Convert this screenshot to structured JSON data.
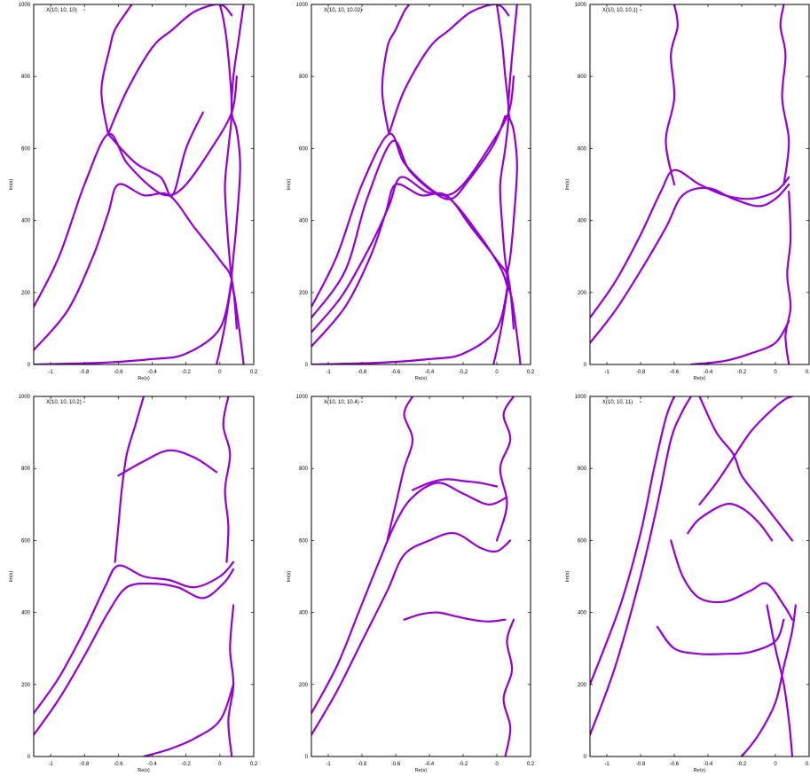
{
  "chart_data": [
    {
      "type": "scatter",
      "legend": "X(10, 10, 10)",
      "xlabel": "Re(s)",
      "ylabel": "Im(s)",
      "xlim": [
        -1.1,
        0.2
      ],
      "ylim": [
        0,
        1000
      ],
      "xticks": [
        "-1",
        "-0.8",
        "-0.6",
        "-0.4",
        "-0.2",
        "0",
        "0.2"
      ],
      "yticks": [
        "0",
        "200",
        "400",
        "600",
        "800",
        "1000"
      ],
      "legend_position": "top-left",
      "color": "#9400d3",
      "curves": [
        {
          "x": [
            -0.02,
            0.0,
            0.03,
            0.06,
            0.07,
            0.06,
            0.04,
            0.03,
            0.05,
            0.07,
            0.06,
            0.04,
            0.02,
            0.0
          ],
          "y": [
            0,
            40,
            110,
            200,
            235,
            280,
            400,
            500,
            600,
            700,
            800,
            900,
            960,
            1000
          ]
        },
        {
          "x": [
            0.14,
            0.12,
            0.09,
            0.07,
            0.08,
            0.1,
            0.12,
            0.1,
            0.07,
            0.08,
            0.11,
            0.14
          ],
          "y": [
            0,
            80,
            180,
            235,
            300,
            400,
            550,
            650,
            700,
            800,
            900,
            1000
          ]
        },
        {
          "x": [
            -1.1,
            -0.9,
            -0.75,
            -0.66,
            -0.6,
            -0.45,
            -0.3,
            -0.15,
            0.0,
            0.07,
            0.1
          ],
          "y": [
            40,
            150,
            300,
            420,
            500,
            470,
            470,
            380,
            290,
            235,
            100
          ]
        },
        {
          "x": [
            -1.1,
            -0.95,
            -0.8,
            -0.66,
            -0.55,
            -0.4,
            -0.3,
            -0.2,
            -0.05,
            0.07,
            0.1
          ],
          "y": [
            160,
            300,
            500,
            640,
            560,
            490,
            470,
            500,
            600,
            700,
            800
          ]
        },
        {
          "x": [
            -1.1,
            -0.7,
            -0.4,
            -0.2,
            0.0,
            0.07
          ],
          "y": [
            0,
            5,
            15,
            30,
            100,
            235
          ]
        },
        {
          "x": [
            -0.66,
            -0.55,
            -0.4,
            -0.28,
            -0.15,
            0.0,
            0.07
          ],
          "y": [
            640,
            760,
            880,
            930,
            980,
            1000,
            970
          ]
        },
        {
          "x": [
            -0.66,
            -0.7,
            -0.65,
            -0.62,
            -0.55,
            -0.52
          ],
          "y": [
            640,
            760,
            880,
            930,
            980,
            1000
          ]
        },
        {
          "x": [
            -0.66,
            -0.5,
            -0.35,
            -0.28,
            -0.2,
            -0.1
          ],
          "y": [
            640,
            560,
            520,
            470,
            600,
            700
          ]
        }
      ]
    },
    {
      "type": "scatter",
      "legend": "X(10, 10, 10.02)",
      "xlabel": "Re(s)",
      "ylabel": "Im(s)",
      "xlim": [
        -1.1,
        0.2
      ],
      "ylim": [
        0,
        1000
      ],
      "xticks": [
        "-1",
        "-0.8",
        "-0.6",
        "-0.4",
        "-0.2",
        "0",
        "0.2"
      ],
      "yticks": [
        "0",
        "200",
        "400",
        "600",
        "800",
        "1000"
      ],
      "legend_position": "top-left",
      "color": "#9400d3",
      "curves": [
        {
          "x": [
            -0.02,
            0.0,
            0.03,
            0.06,
            0.07,
            0.05,
            0.03,
            0.02,
            0.05,
            0.07,
            0.05,
            0.03,
            0.0
          ],
          "y": [
            0,
            40,
            110,
            200,
            235,
            290,
            400,
            500,
            600,
            700,
            800,
            900,
            1000
          ]
        },
        {
          "x": [
            0.14,
            0.12,
            0.09,
            0.06,
            0.08,
            0.1,
            0.12,
            0.1,
            0.07,
            0.08,
            0.12
          ],
          "y": [
            0,
            80,
            180,
            235,
            300,
            400,
            550,
            650,
            700,
            800,
            1000
          ]
        },
        {
          "x": [
            -1.1,
            -0.9,
            -0.75,
            -0.66,
            -0.6,
            -0.45,
            -0.3,
            -0.15,
            0.0,
            0.07,
            0.1
          ],
          "y": [
            50,
            160,
            300,
            420,
            500,
            470,
            470,
            380,
            290,
            235,
            100
          ]
        },
        {
          "x": [
            -1.1,
            -0.92,
            -0.75,
            -0.64,
            -0.57,
            -0.42,
            -0.28,
            -0.12,
            0.02,
            0.06
          ],
          "y": [
            90,
            190,
            330,
            440,
            520,
            480,
            460,
            370,
            270,
            220
          ]
        },
        {
          "x": [
            -1.1,
            -0.95,
            -0.8,
            -0.64,
            -0.55,
            -0.4,
            -0.3,
            -0.2,
            -0.05,
            0.07,
            0.1
          ],
          "y": [
            160,
            300,
            500,
            640,
            560,
            490,
            470,
            500,
            600,
            700,
            800
          ]
        },
        {
          "x": [
            -1.1,
            -0.9,
            -0.77,
            -0.62,
            -0.52,
            -0.38,
            -0.27,
            -0.17,
            -0.02,
            0.05
          ],
          "y": [
            130,
            260,
            460,
            620,
            540,
            480,
            460,
            510,
            610,
            690
          ]
        },
        {
          "x": [
            -1.1,
            -0.7,
            -0.4,
            -0.2,
            0.0,
            0.07
          ],
          "y": [
            0,
            5,
            15,
            30,
            100,
            235
          ]
        },
        {
          "x": [
            -0.64,
            -0.55,
            -0.4,
            -0.28,
            -0.15,
            0.0,
            0.07
          ],
          "y": [
            640,
            760,
            880,
            930,
            980,
            1000,
            970
          ]
        },
        {
          "x": [
            -0.64,
            -0.68,
            -0.65,
            -0.6,
            -0.55,
            -0.52
          ],
          "y": [
            640,
            760,
            880,
            930,
            980,
            1000
          ]
        }
      ]
    },
    {
      "type": "scatter",
      "legend": "X(10, 10, 10.1)",
      "xlabel": "Re(s)",
      "ylabel": "Im(s)",
      "xlim": [
        -1.1,
        0.2
      ],
      "ylim": [
        0,
        1000
      ],
      "xticks": [
        "-1",
        "-0.8",
        "-0.6",
        "-0.4",
        "-0.2",
        "0",
        "0.2"
      ],
      "yticks": [
        "0",
        "200",
        "400",
        "600",
        "800",
        "1000"
      ],
      "legend_position": "top-left",
      "color": "#9400d3",
      "curves": [
        {
          "x": [
            -1.1,
            -0.95,
            -0.8,
            -0.65,
            -0.55,
            -0.4,
            -0.25,
            -0.1,
            0.0,
            0.08
          ],
          "y": [
            60,
            150,
            260,
            380,
            470,
            490,
            460,
            440,
            460,
            500
          ]
        },
        {
          "x": [
            -1.1,
            -0.95,
            -0.8,
            -0.68,
            -0.6,
            -0.45,
            -0.3,
            -0.15,
            0.0,
            0.08
          ],
          "y": [
            130,
            230,
            360,
            480,
            540,
            500,
            470,
            460,
            480,
            520
          ]
        },
        {
          "x": [
            -0.6,
            -0.65,
            -0.6,
            -0.62,
            -0.58,
            -0.6
          ],
          "y": [
            500,
            620,
            740,
            860,
            940,
            1000
          ]
        },
        {
          "x": [
            0.05,
            0.08,
            0.04,
            0.06,
            0.03,
            0.05
          ],
          "y": [
            500,
            620,
            740,
            860,
            940,
            1000
          ]
        },
        {
          "x": [
            0.08,
            0.06,
            0.09,
            0.07,
            0.09,
            0.08
          ],
          "y": [
            0,
            80,
            160,
            250,
            350,
            480
          ]
        },
        {
          "x": [
            -0.5,
            -0.3,
            -0.15,
            0.0,
            0.08
          ],
          "y": [
            0,
            10,
            30,
            60,
            120
          ]
        }
      ]
    },
    {
      "type": "scatter",
      "legend": "X(10, 10, 10.2)",
      "xlabel": "Re(s)",
      "ylabel": "Im(s)",
      "xlim": [
        -1.1,
        0.2
      ],
      "ylim": [
        0,
        1000
      ],
      "xticks": [
        "-1",
        "-0.8",
        "-0.6",
        "-0.4",
        "-0.2",
        "0",
        "0.2"
      ],
      "yticks": [
        "0",
        "200",
        "400",
        "600",
        "800",
        "1000"
      ],
      "legend_position": "top-left",
      "color": "#9400d3",
      "curves": [
        {
          "x": [
            -1.1,
            -0.95,
            -0.8,
            -0.66,
            -0.55,
            -0.4,
            -0.25,
            -0.1,
            0.02,
            0.08
          ],
          "y": [
            60,
            160,
            280,
            400,
            470,
            480,
            470,
            440,
            480,
            520
          ]
        },
        {
          "x": [
            -1.1,
            -0.95,
            -0.8,
            -0.68,
            -0.6,
            -0.45,
            -0.3,
            -0.15,
            0.0,
            0.08
          ],
          "y": [
            120,
            220,
            350,
            470,
            530,
            500,
            490,
            470,
            500,
            540
          ]
        },
        {
          "x": [
            -0.62,
            -0.6,
            -0.58,
            -0.55,
            -0.5,
            -0.45
          ],
          "y": [
            540,
            640,
            740,
            840,
            920,
            1000
          ]
        },
        {
          "x": [
            0.04,
            0.05,
            0.03,
            0.06,
            0.02,
            0.05
          ],
          "y": [
            540,
            640,
            740,
            840,
            920,
            1000
          ]
        },
        {
          "x": [
            -0.6,
            -0.45,
            -0.3,
            -0.15,
            -0.02
          ],
          "y": [
            780,
            820,
            850,
            830,
            790
          ]
        },
        {
          "x": [
            -0.45,
            -0.3,
            -0.15,
            0.0,
            0.08
          ],
          "y": [
            0,
            20,
            50,
            100,
            200
          ]
        },
        {
          "x": [
            0.07,
            0.05,
            0.08,
            0.06,
            0.08
          ],
          "y": [
            0,
            100,
            200,
            300,
            420
          ]
        }
      ]
    },
    {
      "type": "scatter",
      "legend": "X(10, 10, 10.4)",
      "xlabel": "Re(s)",
      "ylabel": "Im(s)",
      "xlim": [
        -1.1,
        0.2
      ],
      "ylim": [
        0,
        1000
      ],
      "xticks": [
        "-1",
        "-0.8",
        "-0.6",
        "-0.4",
        "-0.2",
        "0",
        "0.2"
      ],
      "yticks": [
        "0",
        "200",
        "400",
        "600",
        "800",
        "1000"
      ],
      "legend_position": "top-left",
      "color": "#9400d3",
      "curves": [
        {
          "x": [
            -1.1,
            -0.95,
            -0.8,
            -0.65,
            -0.55,
            -0.4,
            -0.25,
            -0.1,
            0.0,
            0.08
          ],
          "y": [
            60,
            180,
            320,
            460,
            560,
            600,
            620,
            580,
            570,
            600
          ]
        },
        {
          "x": [
            -1.1,
            -0.95,
            -0.82,
            -0.7,
            -0.6,
            -0.5,
            -0.35,
            -0.2,
            -0.05,
            0.06
          ],
          "y": [
            120,
            250,
            400,
            540,
            650,
            720,
            760,
            730,
            700,
            720
          ]
        },
        {
          "x": [
            -0.55,
            -0.45,
            -0.35,
            -0.25,
            -0.15,
            -0.05,
            0.05
          ],
          "y": [
            380,
            395,
            400,
            390,
            380,
            375,
            380
          ]
        },
        {
          "x": [
            -0.5,
            -0.4,
            -0.3,
            -0.2,
            -0.1,
            0.0
          ],
          "y": [
            740,
            760,
            770,
            765,
            760,
            750
          ]
        },
        {
          "x": [
            -0.65,
            -0.6,
            -0.55,
            -0.5,
            -0.55,
            -0.5
          ],
          "y": [
            600,
            700,
            800,
            880,
            950,
            1000
          ]
        },
        {
          "x": [
            0.0,
            0.06,
            0.02,
            0.08,
            0.04,
            0.1
          ],
          "y": [
            600,
            700,
            800,
            880,
            950,
            1000
          ]
        },
        {
          "x": [
            0.05,
            0.08,
            0.04,
            0.09,
            0.06,
            0.1
          ],
          "y": [
            0,
            80,
            160,
            240,
            320,
            380
          ]
        }
      ]
    },
    {
      "type": "scatter",
      "legend": "X(10, 10, 11)",
      "xlabel": "Re(s)",
      "ylabel": "Im(s)",
      "xlim": [
        -1.1,
        0.2
      ],
      "ylim": [
        0,
        1000
      ],
      "xticks": [
        "-1",
        "-0.8",
        "-0.6",
        "-0.4",
        "-0.2",
        "0",
        "0.2"
      ],
      "yticks": [
        "0",
        "200",
        "400",
        "600",
        "800",
        "1000"
      ],
      "legend_position": "top-left",
      "color": "#9400d3",
      "curves": [
        {
          "x": [
            -1.1,
            -0.95,
            -0.8,
            -0.7,
            -0.62,
            -0.55,
            -0.5
          ],
          "y": [
            60,
            250,
            500,
            700,
            880,
            960,
            1000
          ]
        },
        {
          "x": [
            -1.1,
            -0.92,
            -0.8,
            -0.72,
            -0.65,
            -0.6
          ],
          "y": [
            200,
            420,
            620,
            800,
            940,
            1000
          ]
        },
        {
          "x": [
            -0.62,
            -0.55,
            -0.45,
            -0.3,
            -0.15,
            -0.05,
            0.05,
            0.1
          ],
          "y": [
            600,
            500,
            440,
            430,
            460,
            480,
            420,
            380
          ]
        },
        {
          "x": [
            -0.7,
            -0.6,
            -0.45,
            -0.3,
            -0.15,
            0.0,
            0.05
          ],
          "y": [
            360,
            300,
            285,
            285,
            290,
            320,
            380
          ]
        },
        {
          "x": [
            -0.52,
            -0.45,
            -0.3,
            -0.2,
            -0.1,
            -0.02
          ],
          "y": [
            620,
            660,
            700,
            690,
            650,
            600
          ]
        },
        {
          "x": [
            -0.45,
            -0.35,
            -0.25,
            -0.2,
            -0.1,
            0.0,
            0.1
          ],
          "y": [
            1000,
            900,
            840,
            780,
            720,
            660,
            600
          ]
        },
        {
          "x": [
            -0.45,
            -0.35,
            -0.25,
            -0.15,
            -0.05,
            0.05,
            0.1
          ],
          "y": [
            700,
            760,
            830,
            900,
            950,
            990,
            1000
          ]
        },
        {
          "x": [
            -0.2,
            -0.1,
            0.0,
            0.05,
            0.1,
            0.12
          ],
          "y": [
            0,
            60,
            150,
            250,
            350,
            420
          ]
        },
        {
          "x": [
            0.1,
            0.08,
            0.05,
            0.0,
            -0.05
          ],
          "y": [
            0,
            100,
            200,
            300,
            420
          ]
        }
      ]
    }
  ]
}
